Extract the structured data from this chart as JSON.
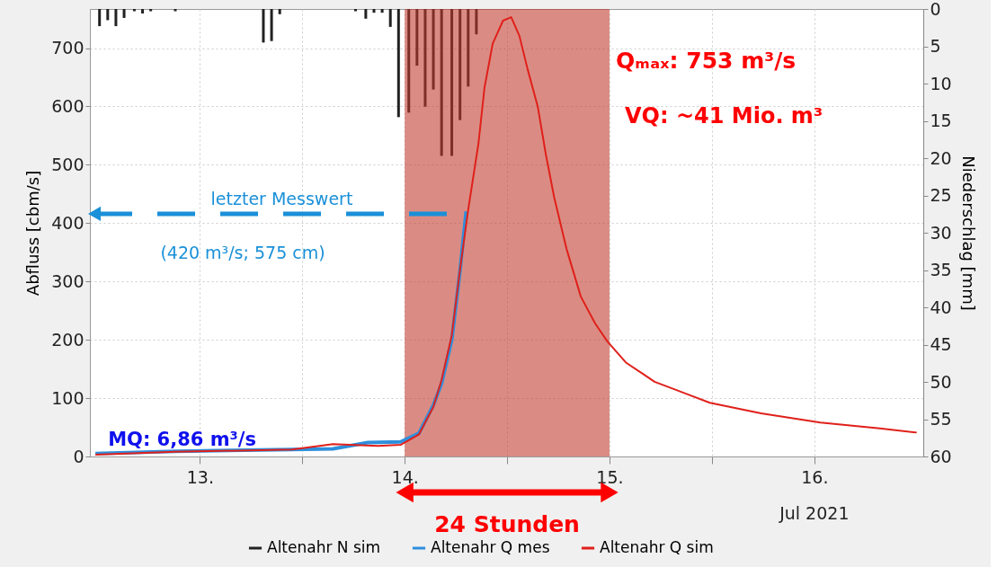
{
  "chart_data": {
    "type": "line",
    "xlabel": "Jul 2021",
    "ylabel": "Abfluss [cbm/s]",
    "y2label": "Niederschlag [mm]",
    "xlim": [
      12.485,
      16.51
    ],
    "ylim": [
      0,
      767
    ],
    "y2lim": [
      60,
      0
    ],
    "xticks": [
      {
        "value": 13,
        "label": "13."
      },
      {
        "value": 13.5,
        "label": null
      },
      {
        "value": 14,
        "label": "14."
      },
      {
        "value": 14.5,
        "label": null
      },
      {
        "value": 15,
        "label": "15."
      },
      {
        "value": 15.5,
        "label": null
      },
      {
        "value": 16,
        "label": "16."
      }
    ],
    "yticks": [
      0,
      100,
      200,
      300,
      400,
      500,
      600,
      700
    ],
    "y2ticks": [
      0,
      5,
      10,
      15,
      20,
      25,
      30,
      35,
      40,
      45,
      50,
      55,
      60
    ],
    "grid": true,
    "legend": "bottom",
    "line_style": "solid",
    "series": [
      {
        "name": "Altenahr N sim",
        "type": "bar",
        "axis": "y2",
        "color": "#222222",
        "x": [
          12.51,
          12.55,
          12.59,
          12.63,
          12.68,
          12.72,
          12.76,
          12.88,
          13.31,
          13.35,
          13.39,
          13.76,
          13.81,
          13.85,
          13.89,
          13.93,
          13.97,
          14.02,
          14.06,
          14.1,
          14.14,
          14.18,
          14.23,
          14.27,
          14.31,
          14.35
        ],
        "values": [
          2.3,
          1.5,
          2.3,
          1.2,
          0.3,
          0.6,
          0.3,
          0.3,
          4.5,
          4.3,
          0.7,
          0.3,
          1.3,
          0.5,
          0.5,
          2.4,
          14.5,
          13.9,
          7.6,
          13.1,
          10.8,
          19.7,
          19.7,
          14.9,
          10.4,
          3.4
        ]
      },
      {
        "name": "Altenahr Q mes",
        "color": "#2f8fdc",
        "x": [
          12.49,
          12.88,
          13.45,
          13.65,
          13.82,
          13.98,
          14.07,
          14.14,
          14.18,
          14.23,
          14.27,
          14.3
        ],
        "values": [
          5,
          9,
          12,
          13,
          24,
          25,
          40,
          88,
          125,
          200,
          318,
          420
        ]
      },
      {
        "line_style": "dashed",
        "color": "#1a90d8",
        "x": [
          14.3,
          12.485
        ],
        "values": [
          416,
          416
        ]
      },
      {
        "name": "Altenahr Q sim",
        "color": "#e0201a",
        "x": [
          12.49,
          12.88,
          13.45,
          13.65,
          13.87,
          13.98,
          14.07,
          14.14,
          14.18,
          14.23,
          14.27,
          14.31,
          14.36,
          14.39,
          14.43,
          14.48,
          14.52,
          14.56,
          14.6,
          14.65,
          14.69,
          14.73,
          14.79,
          14.86,
          14.93,
          14.99,
          15.08,
          15.17,
          15.22,
          15.31,
          15.49,
          15.74,
          16.03,
          16.32,
          16.5
        ],
        "values": [
          3,
          8,
          12,
          21,
          18,
          20,
          38,
          85,
          131,
          208,
          320,
          423,
          536,
          633,
          708,
          747,
          753,
          721,
          664,
          599,
          516,
          444,
          356,
          274,
          228,
          197,
          161,
          140,
          128,
          116,
          92,
          74,
          58,
          48,
          41
        ]
      }
    ],
    "bands": [
      {
        "axis": "x",
        "from": 14,
        "to": 15,
        "label": "24 Stunden",
        "color": "#c0392b"
      }
    ],
    "annotations": [
      "Qₘₐₓ: 753 m³/s",
      "VQ: ~41 Mio. m³",
      {
        "text": "letzter Messwert",
        "x": 13.4,
        "y": 416
      },
      "(420 m³/s; 575 cm)",
      {
        "text": "MQ: 6,86 m³/s",
        "x": 12.49,
        "y": 6.86
      }
    ]
  }
}
